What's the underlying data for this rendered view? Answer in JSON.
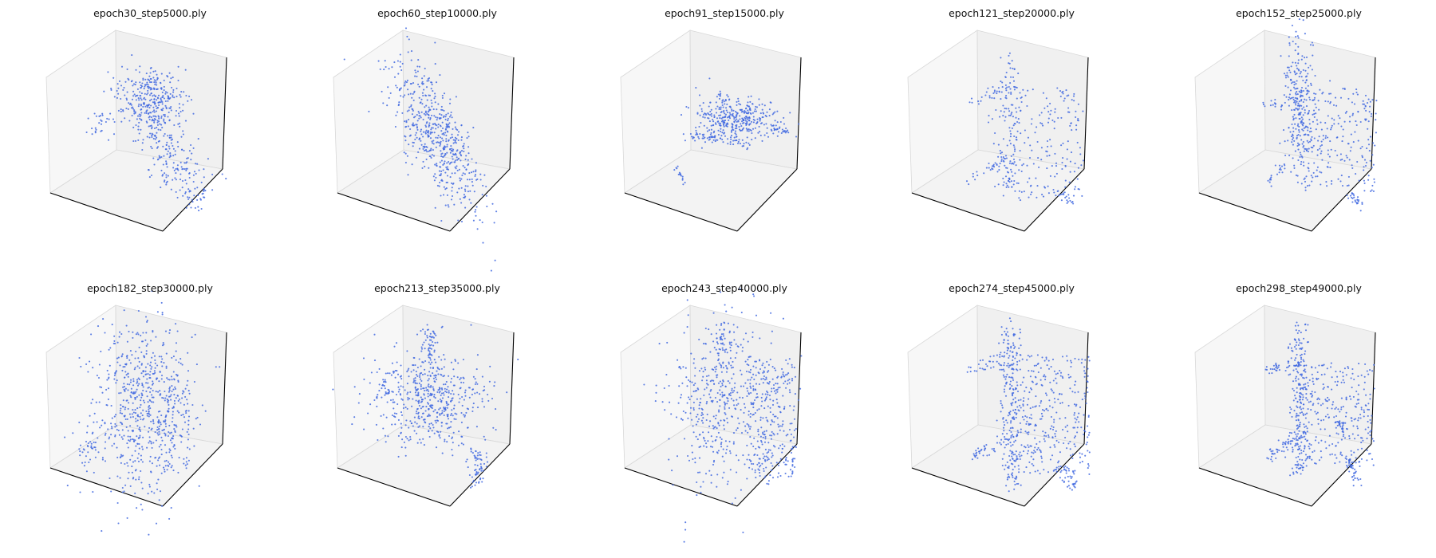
{
  "figure": {
    "colors": {
      "points": "#4169e1",
      "pane_back": "#f0f0f0",
      "pane_side": "#f7f7f7",
      "pane_floor": "#f3f3f3",
      "edge": "#d8d8d8",
      "axis": "#000000"
    }
  },
  "chart_data": [
    {
      "type": "scatter",
      "title": "epoch30_step5000.ply",
      "projection": "3d",
      "point_cloud": "diffuse blob with lower scattered tail",
      "grid": false,
      "ticks": false
    },
    {
      "type": "scatter",
      "title": "epoch60_step10000.ply",
      "projection": "3d",
      "point_cloud": "elongated diagonal streak",
      "grid": false,
      "ticks": false
    },
    {
      "type": "scatter",
      "title": "epoch91_step15000.ply",
      "projection": "3d",
      "point_cloud": "compact layered cluster with small offshoot",
      "grid": false,
      "ticks": false
    },
    {
      "type": "scatter",
      "title": "epoch121_step20000.ply",
      "projection": "3d",
      "point_cloud": "sparse chair-like outline",
      "grid": false,
      "ticks": false
    },
    {
      "type": "scatter",
      "title": "epoch152_step25000.ply",
      "projection": "3d",
      "point_cloud": "chair-like outline with dense back",
      "grid": false,
      "ticks": false
    },
    {
      "type": "scatter",
      "title": "epoch182_step30000.ply",
      "projection": "3d",
      "point_cloud": "dense diffuse mass",
      "grid": false,
      "ticks": false
    },
    {
      "type": "scatter",
      "title": "epoch213_step35000.ply",
      "projection": "3d",
      "point_cloud": "ring-like diffuse mass",
      "grid": false,
      "ticks": false
    },
    {
      "type": "scatter",
      "title": "epoch243_step40000.ply",
      "projection": "3d",
      "point_cloud": "wide diffuse chair shape",
      "grid": false,
      "ticks": false
    },
    {
      "type": "scatter",
      "title": "epoch274_step45000.ply",
      "projection": "3d",
      "point_cloud": "defined chair outline",
      "grid": false,
      "ticks": false
    },
    {
      "type": "scatter",
      "title": "epoch298_step49000.ply",
      "projection": "3d",
      "point_cloud": "sharp chair outline",
      "grid": false,
      "ticks": false
    }
  ]
}
